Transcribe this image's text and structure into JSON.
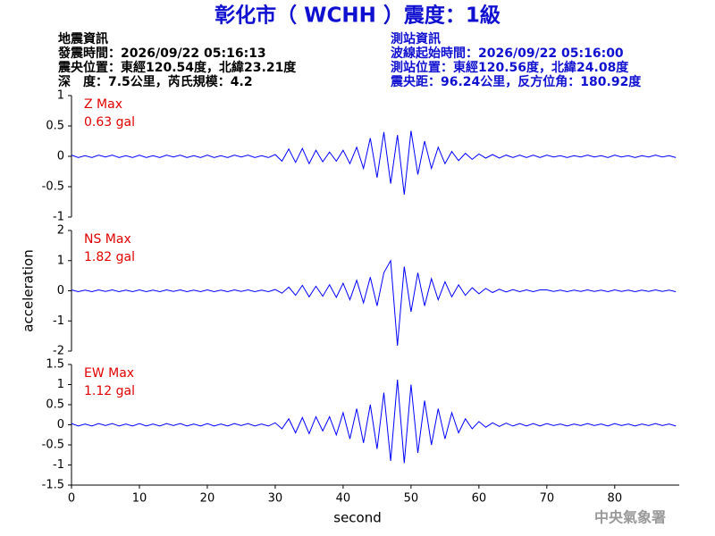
{
  "header": {
    "title": "彰化市（ WCHH ）震度：1級",
    "left": [
      "地震資訊",
      "發震時間：2026/09/22 05:16:13",
      "震央位置：東經120.54度，北緯23.21度",
      "深　度：7.5公里，芮氏規模：4.2"
    ],
    "right": [
      "測站資訊",
      "波線起始時間：2026/09/22 05:16:00",
      "測站位置：東經120.56度，北緯24.08度",
      "震央距：96.24公里，反方位角：180.92度"
    ]
  },
  "footer": "中央氣象署",
  "chart_data": [
    {
      "type": "line",
      "annotations": [
        "Z Max",
        "0.63 gal"
      ],
      "x": [
        0,
        1,
        2,
        3,
        4,
        5,
        6,
        7,
        8,
        9,
        10,
        11,
        12,
        13,
        14,
        15,
        16,
        17,
        18,
        19,
        20,
        21,
        22,
        23,
        24,
        25,
        26,
        27,
        28,
        29,
        30,
        31,
        32,
        33,
        34,
        35,
        36,
        37,
        38,
        39,
        40,
        41,
        42,
        43,
        44,
        45,
        46,
        47,
        48,
        49,
        50,
        51,
        52,
        53,
        54,
        55,
        56,
        57,
        58,
        59,
        60,
        61,
        62,
        63,
        64,
        65,
        66,
        67,
        68,
        69,
        70,
        71,
        72,
        73,
        74,
        75,
        76,
        77,
        78,
        79,
        80,
        81,
        82,
        83,
        84,
        85,
        86,
        87,
        88,
        89
      ],
      "series": [
        {
          "name": "Z",
          "color": "#0000ff",
          "values": [
            0.02,
            -0.02,
            0.01,
            -0.02,
            0.02,
            -0.01,
            0.02,
            -0.02,
            0.01,
            -0.02,
            0.02,
            -0.02,
            0.01,
            -0.02,
            0.02,
            -0.01,
            0.02,
            -0.02,
            0.01,
            -0.02,
            0.02,
            -0.02,
            0.01,
            -0.02,
            0.02,
            -0.01,
            0.02,
            -0.02,
            0.01,
            -0.02,
            0.03,
            -0.08,
            0.12,
            -0.1,
            0.13,
            -0.12,
            0.1,
            -0.09,
            0.07,
            -0.08,
            0.1,
            -0.12,
            0.15,
            -0.2,
            0.3,
            -0.35,
            0.4,
            -0.45,
            0.35,
            -0.63,
            0.42,
            -0.3,
            0.25,
            -0.2,
            0.15,
            -0.12,
            0.08,
            -0.07,
            0.05,
            -0.05,
            0.04,
            -0.03,
            0.03,
            -0.03,
            0.02,
            -0.02,
            0.02,
            -0.02,
            0.02,
            -0.02,
            0.02,
            -0.01,
            0.01,
            -0.02,
            0.01,
            -0.01,
            0.02,
            -0.01,
            0.01,
            -0.02,
            0.02,
            -0.01,
            0.01,
            -0.02,
            0.01,
            -0.01,
            0.02,
            -0.01,
            0.01,
            -0.02
          ]
        }
      ],
      "xlim": [
        0,
        89.5
      ],
      "ylim": [
        -1,
        1
      ],
      "yticks": [
        -1,
        -0.5,
        0,
        0.5,
        1
      ]
    },
    {
      "type": "line",
      "annotations": [
        "NS Max",
        "1.82 gal"
      ],
      "ylabel": "acceleration",
      "x": [
        0,
        1,
        2,
        3,
        4,
        5,
        6,
        7,
        8,
        9,
        10,
        11,
        12,
        13,
        14,
        15,
        16,
        17,
        18,
        19,
        20,
        21,
        22,
        23,
        24,
        25,
        26,
        27,
        28,
        29,
        30,
        31,
        32,
        33,
        34,
        35,
        36,
        37,
        38,
        39,
        40,
        41,
        42,
        43,
        44,
        45,
        46,
        47,
        48,
        49,
        50,
        51,
        52,
        53,
        54,
        55,
        56,
        57,
        58,
        59,
        60,
        61,
        62,
        63,
        64,
        65,
        66,
        67,
        68,
        69,
        70,
        71,
        72,
        73,
        74,
        75,
        76,
        77,
        78,
        79,
        80,
        81,
        82,
        83,
        84,
        85,
        86,
        87,
        88,
        89
      ],
      "series": [
        {
          "name": "NS",
          "color": "#0000ff",
          "values": [
            0.03,
            -0.03,
            0.02,
            -0.03,
            0.03,
            -0.02,
            0.03,
            -0.03,
            0.02,
            -0.03,
            0.03,
            -0.03,
            0.02,
            -0.03,
            0.03,
            -0.02,
            0.03,
            -0.03,
            0.02,
            -0.03,
            0.03,
            -0.03,
            0.02,
            -0.03,
            0.03,
            -0.02,
            0.03,
            -0.03,
            0.02,
            -0.03,
            0.04,
            -0.08,
            0.12,
            -0.15,
            0.18,
            -0.2,
            0.15,
            -0.18,
            0.2,
            -0.22,
            0.25,
            -0.3,
            0.35,
            -0.4,
            0.45,
            -0.5,
            0.6,
            1.0,
            -1.82,
            0.8,
            -0.7,
            0.6,
            -0.5,
            0.4,
            -0.3,
            0.3,
            -0.2,
            0.2,
            -0.15,
            0.1,
            -0.1,
            0.08,
            -0.06,
            0.05,
            -0.04,
            0.04,
            -0.03,
            0.03,
            -0.03,
            0.03,
            0.03,
            -0.02,
            0.02,
            -0.03,
            0.02,
            -0.02,
            0.03,
            -0.02,
            0.02,
            -0.03,
            0.03,
            -0.02,
            0.02,
            -0.03,
            0.02,
            -0.02,
            0.03,
            -0.02,
            0.02,
            -0.03
          ]
        }
      ],
      "xlim": [
        0,
        89.5
      ],
      "ylim": [
        -2,
        2
      ],
      "yticks": [
        -2,
        -1,
        0,
        1,
        2
      ]
    },
    {
      "type": "line",
      "annotations": [
        "EW Max",
        "1.12 gal"
      ],
      "xlabel": "second",
      "x": [
        0,
        1,
        2,
        3,
        4,
        5,
        6,
        7,
        8,
        9,
        10,
        11,
        12,
        13,
        14,
        15,
        16,
        17,
        18,
        19,
        20,
        21,
        22,
        23,
        24,
        25,
        26,
        27,
        28,
        29,
        30,
        31,
        32,
        33,
        34,
        35,
        36,
        37,
        38,
        39,
        40,
        41,
        42,
        43,
        44,
        45,
        46,
        47,
        48,
        49,
        50,
        51,
        52,
        53,
        54,
        55,
        56,
        57,
        58,
        59,
        60,
        61,
        62,
        63,
        64,
        65,
        66,
        67,
        68,
        69,
        70,
        71,
        72,
        73,
        74,
        75,
        76,
        77,
        78,
        79,
        80,
        81,
        82,
        83,
        84,
        85,
        86,
        87,
        88,
        89
      ],
      "series": [
        {
          "name": "EW",
          "color": "#0000ff",
          "values": [
            0.03,
            -0.03,
            0.02,
            -0.03,
            0.03,
            -0.02,
            0.03,
            -0.03,
            0.02,
            -0.03,
            0.03,
            -0.03,
            0.02,
            -0.03,
            0.03,
            -0.02,
            0.03,
            -0.03,
            0.02,
            -0.03,
            0.03,
            -0.03,
            0.02,
            -0.03,
            0.03,
            -0.02,
            0.03,
            -0.03,
            0.02,
            -0.03,
            0.05,
            -0.1,
            0.15,
            -0.2,
            0.18,
            -0.22,
            0.2,
            -0.15,
            0.2,
            -0.25,
            0.3,
            -0.35,
            0.4,
            -0.45,
            0.5,
            -0.6,
            0.8,
            -0.9,
            1.12,
            -0.95,
            1.0,
            -0.7,
            0.6,
            -0.5,
            0.4,
            -0.35,
            0.3,
            -0.2,
            0.15,
            -0.1,
            0.08,
            -0.06,
            0.05,
            -0.04,
            0.04,
            -0.03,
            0.03,
            -0.03,
            0.03,
            -0.03,
            0.03,
            -0.02,
            0.02,
            -0.03,
            0.02,
            -0.02,
            0.03,
            -0.02,
            0.02,
            -0.03,
            0.03,
            -0.02,
            0.02,
            -0.03,
            0.02,
            -0.02,
            0.03,
            -0.02,
            0.02,
            -0.03
          ]
        }
      ],
      "xlim": [
        0,
        89.5
      ],
      "ylim": [
        -1.5,
        1.5
      ],
      "yticks": [
        -1.5,
        -1,
        -0.5,
        0,
        0.5,
        1,
        1.5
      ],
      "xticks": [
        0,
        10,
        20,
        30,
        40,
        50,
        60,
        70,
        80
      ]
    }
  ]
}
